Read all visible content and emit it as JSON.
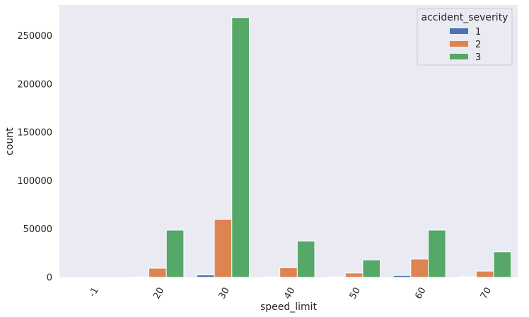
{
  "chart_data": {
    "type": "bar",
    "xlabel": "speed_limit",
    "ylabel": "count",
    "categories": [
      "-1",
      "20",
      "30",
      "40",
      "50",
      "60",
      "70"
    ],
    "ylim": [
      0,
      282000
    ],
    "yticks": [
      0,
      50000,
      100000,
      150000,
      200000,
      250000
    ],
    "ytick_labels": [
      "0",
      "50000",
      "100000",
      "150000",
      "200000",
      "250000"
    ],
    "grid": false,
    "background": "#eaeaf2",
    "legend": {
      "title": "accident_severity",
      "placement": "top-right"
    },
    "series": [
      {
        "name": "1",
        "color": "#4c72b0",
        "values": [
          0,
          300,
          2500,
          500,
          400,
          2000,
          700
        ]
      },
      {
        "name": "2",
        "color": "#dd8452",
        "values": [
          0,
          9500,
          60000,
          10000,
          4500,
          19000,
          6500
        ]
      },
      {
        "name": "3",
        "color": "#55a868",
        "values": [
          0,
          49000,
          269000,
          37500,
          18000,
          49000,
          26500
        ]
      }
    ]
  }
}
